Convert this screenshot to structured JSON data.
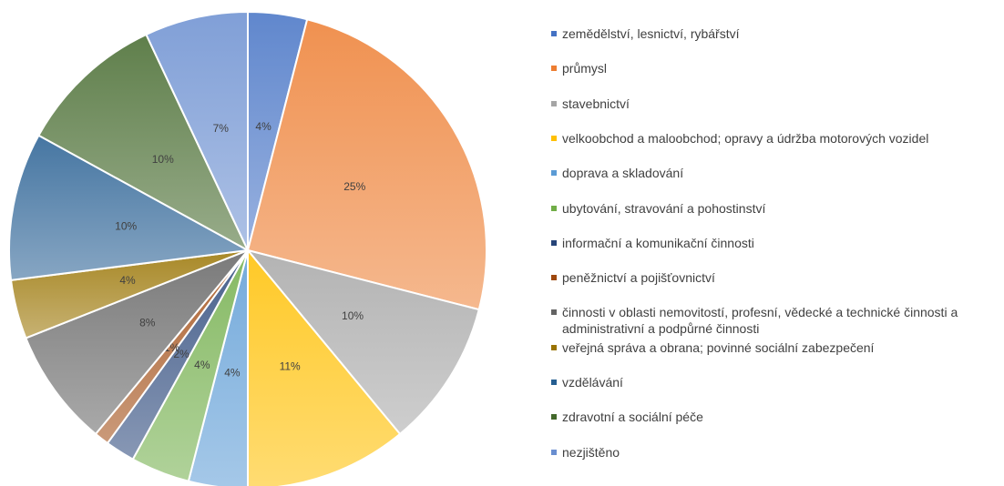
{
  "chart_data": {
    "type": "pie",
    "categories": [
      "zemědělství, lesnictví, rybářství",
      "průmysl",
      "stavebnictví",
      "velkoobchod a maloobchod; opravy a údržba motorových vozidel",
      "doprava a skladování",
      "ubytování, stravování a pohostinství",
      "informační a komunikační činnosti",
      "peněžnictví a pojišťovnictví",
      "činnosti v oblasti nemovitostí, profesní, vědecké a technické činnosti a administrativní a podpůrné činnosti",
      "veřejná správa a obrana; povinné sociální zabezpečení",
      "vzdělávání",
      "zdravotní a sociální péče",
      "nezjištěno"
    ],
    "values": [
      4,
      25,
      10,
      11,
      4,
      4,
      2,
      1,
      8,
      4,
      10,
      10,
      7
    ],
    "value_labels": [
      "4%",
      "25%",
      "10%",
      "11%",
      "4%",
      "4%",
      "2%",
      "1%",
      "8%",
      "4%",
      "10%",
      "10%",
      "7%"
    ],
    "colors": [
      "#4472c4",
      "#ed7d31",
      "#a5a5a5",
      "#ffc000",
      "#5b9bd5",
      "#70ad47",
      "#264478",
      "#9e480e",
      "#636363",
      "#997300",
      "#255e91",
      "#43682b",
      "#698ed0"
    ],
    "legend": "right"
  }
}
